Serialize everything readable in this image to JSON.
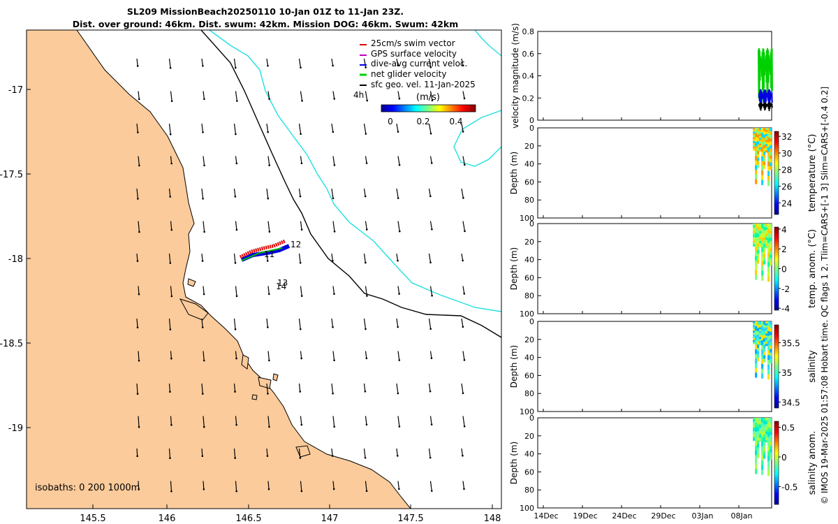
{
  "title": {
    "line1": "SL209 MissionBeach20250110 10-Jan 01Z to 11-Jan 23Z.",
    "line2": "Dist. over ground: 46km. Dist. swum: 42km. Mission DOG: 46km. Swum: 42km"
  },
  "map": {
    "lon_ticks": [
      "145.5",
      "146",
      "146.5",
      "147",
      "147.5",
      "148"
    ],
    "lat_ticks": [
      "-17",
      "-17.5",
      "-18",
      "-18.5",
      "-19"
    ],
    "legend": [
      {
        "label": "25cm/s swim vector",
        "color": "#e00000"
      },
      {
        "label": "GPS surface velocity",
        "color": "#c000c0"
      },
      {
        "label": "dive-avg current veloc.",
        "color": "#0000e0"
      },
      {
        "label": "net glider velocity",
        "color": "#00d000"
      },
      {
        "label": "sfc geo. vel. 11-Jan-2025",
        "color": "#000000"
      }
    ],
    "colorbar": {
      "unit": "(m/s)",
      "ticks": [
        "0",
        "0.2",
        "0.4"
      ]
    },
    "track_labels": [
      "11",
      "12",
      "13",
      "14",
      "4h"
    ],
    "isobaths_text": "isobaths: 0   200  1000m",
    "colors": {
      "land": "#fbcb9b",
      "isobath_200": "#000000",
      "isobath_1000": "#20e0e0"
    }
  },
  "panels": {
    "velocity": {
      "ylabel": "velocity magnitude (m/s)",
      "ticks": [
        "0",
        "0.2",
        "0.4",
        "0.6",
        "0.8"
      ]
    },
    "depth_ylabel": "Depth (m)",
    "depth_ticks": [
      "0",
      "20",
      "40",
      "60",
      "80",
      "100"
    ],
    "temperature": {
      "label": "temperature (°C)",
      "ticks": [
        "24",
        "26",
        "28",
        "30",
        "32"
      ]
    },
    "temp_anom": {
      "label": "temp. anom. (°C)",
      "ticks": [
        "-4",
        "-2",
        "0",
        "2",
        "4"
      ]
    },
    "salinity": {
      "label": "salinity",
      "ticks": [
        "34.5",
        "35",
        "35.5"
      ]
    },
    "sal_anom": {
      "label": "salinity anom.",
      "ticks": [
        "-0.5",
        "0",
        "0.5"
      ]
    },
    "time_ticks": [
      "14Dec",
      "19Dec",
      "24Dec",
      "29Dec",
      "03Jan",
      "08Jan"
    ]
  },
  "side_text": "© IMOS 19-Mar-2025 01:57:08 Hobart time. QC flags 1  2. Tlim=CARS+[-1 3] Slim=CARS+[-0.4 0.2]"
}
